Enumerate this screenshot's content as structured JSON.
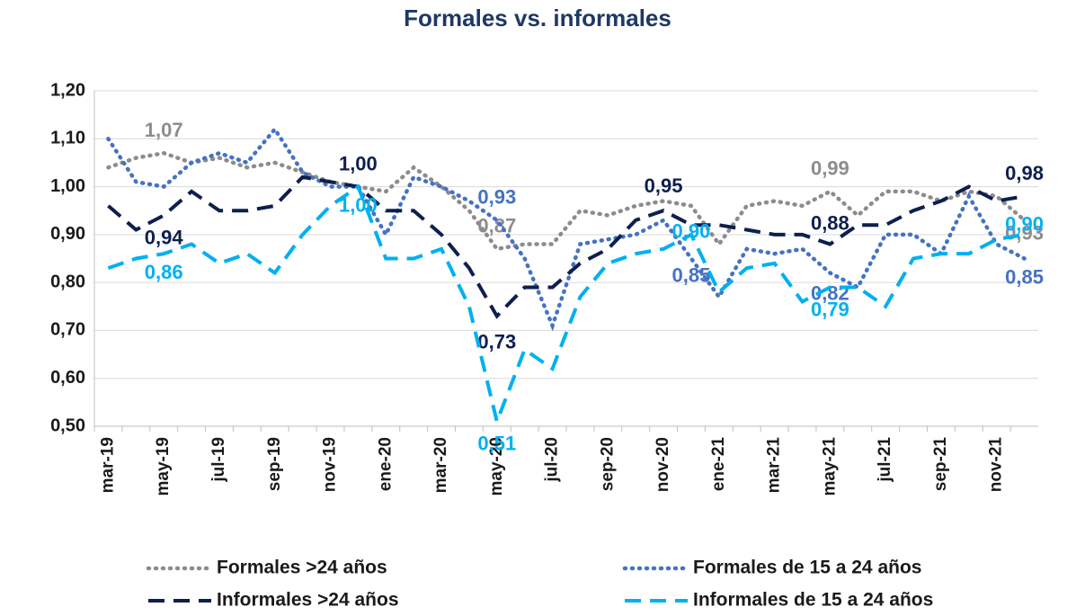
{
  "chart_data": {
    "type": "line",
    "title": "Formales vs. informales",
    "categories": [
      "mar-19",
      null,
      "may-19",
      null,
      "jul-19",
      null,
      "sep-19",
      null,
      "nov-19",
      null,
      "ene-20",
      null,
      "mar-20",
      null,
      "may-20",
      null,
      "jul-20",
      null,
      "sep-20",
      null,
      "nov-20",
      null,
      "ene-21",
      null,
      "mar-21",
      null,
      "may-21",
      null,
      "jul-21",
      null,
      "sep-21",
      null,
      "nov-21",
      null
    ],
    "ylim": [
      0.5,
      1.2
    ],
    "yticks": [
      {
        "value": 0.5,
        "label": "0,50"
      },
      {
        "value": 0.6,
        "label": "0,60"
      },
      {
        "value": 0.7,
        "label": "0,70"
      },
      {
        "value": 0.8,
        "label": "0,80"
      },
      {
        "value": 0.9,
        "label": "0,90"
      },
      {
        "value": 1.0,
        "label": "1,00"
      },
      {
        "value": 1.1,
        "label": "1,10"
      },
      {
        "value": 1.2,
        "label": "1,20"
      }
    ],
    "grid": true,
    "legend": "bottom",
    "series": [
      {
        "name": "Formales >24 años",
        "color": "#8c8c8c",
        "style": "dotted",
        "values": [
          1.04,
          1.06,
          1.07,
          1.05,
          1.06,
          1.04,
          1.05,
          1.03,
          1.01,
          1.0,
          0.99,
          1.04,
          1.0,
          0.95,
          0.87,
          0.88,
          0.88,
          0.95,
          0.94,
          0.96,
          0.97,
          0.96,
          0.88,
          0.96,
          0.97,
          0.96,
          0.99,
          0.94,
          0.99,
          0.99,
          0.97,
          0.99,
          0.98,
          0.93
        ],
        "value_labels": [
          null,
          null,
          "1,07",
          null,
          null,
          null,
          null,
          null,
          null,
          null,
          null,
          null,
          null,
          null,
          "0,87",
          null,
          null,
          null,
          null,
          null,
          null,
          null,
          null,
          null,
          null,
          null,
          "0,99",
          null,
          null,
          null,
          null,
          null,
          null,
          "0,93"
        ]
      },
      {
        "name": "Formales de 15 a 24 años",
        "color": "#4472c4",
        "style": "dotted",
        "values": [
          1.1,
          1.01,
          1.0,
          1.05,
          1.07,
          1.05,
          1.12,
          1.03,
          1.0,
          1.0,
          0.9,
          1.02,
          1.0,
          0.97,
          0.93,
          0.85,
          0.71,
          0.88,
          0.89,
          0.9,
          0.93,
          0.85,
          0.77,
          0.87,
          0.86,
          0.87,
          0.82,
          0.79,
          0.9,
          0.9,
          0.86,
          0.98,
          0.88,
          0.85
        ],
        "value_labels": [
          null,
          null,
          null,
          null,
          null,
          null,
          null,
          null,
          null,
          null,
          null,
          null,
          null,
          null,
          "0,93",
          null,
          null,
          null,
          null,
          null,
          null,
          "0,85",
          null,
          null,
          null,
          null,
          "0,82",
          null,
          null,
          null,
          null,
          null,
          null,
          "0,85"
        ]
      },
      {
        "name": "Informales >24 años",
        "color": "#0d1f4e",
        "style": "dashed",
        "values": [
          0.96,
          0.91,
          0.94,
          0.99,
          0.95,
          0.95,
          0.96,
          1.02,
          1.01,
          1.0,
          0.95,
          0.95,
          0.9,
          0.83,
          0.73,
          0.79,
          0.79,
          0.84,
          0.87,
          0.93,
          0.95,
          0.92,
          0.92,
          0.91,
          0.9,
          0.9,
          0.88,
          0.92,
          0.92,
          0.95,
          0.97,
          1.0,
          0.97,
          0.98
        ],
        "value_labels": [
          null,
          null,
          "0,94",
          null,
          null,
          null,
          null,
          null,
          null,
          "1,00",
          null,
          null,
          null,
          null,
          "0,73",
          null,
          null,
          null,
          null,
          null,
          "0,95",
          null,
          null,
          null,
          null,
          null,
          "0,88",
          null,
          null,
          null,
          null,
          null,
          null,
          "0,98"
        ]
      },
      {
        "name": "Informales de 15 a 24 años",
        "color": "#00b0f0",
        "style": "dashed",
        "values": [
          0.83,
          0.85,
          0.86,
          0.88,
          0.84,
          0.86,
          0.82,
          0.9,
          0.96,
          1.0,
          0.85,
          0.85,
          0.87,
          0.75,
          0.51,
          0.66,
          0.62,
          0.77,
          0.84,
          0.86,
          0.87,
          0.9,
          0.78,
          0.83,
          0.84,
          0.76,
          0.79,
          0.79,
          0.75,
          0.85,
          0.86,
          0.86,
          0.89,
          0.9
        ],
        "value_labels": [
          null,
          null,
          "0,86",
          null,
          null,
          null,
          null,
          null,
          null,
          "1,00",
          null,
          null,
          null,
          null,
          "0,51",
          null,
          null,
          null,
          null,
          null,
          null,
          "0,90",
          null,
          null,
          null,
          null,
          "0,79",
          null,
          null,
          null,
          null,
          null,
          null,
          "0,90"
        ]
      }
    ]
  }
}
